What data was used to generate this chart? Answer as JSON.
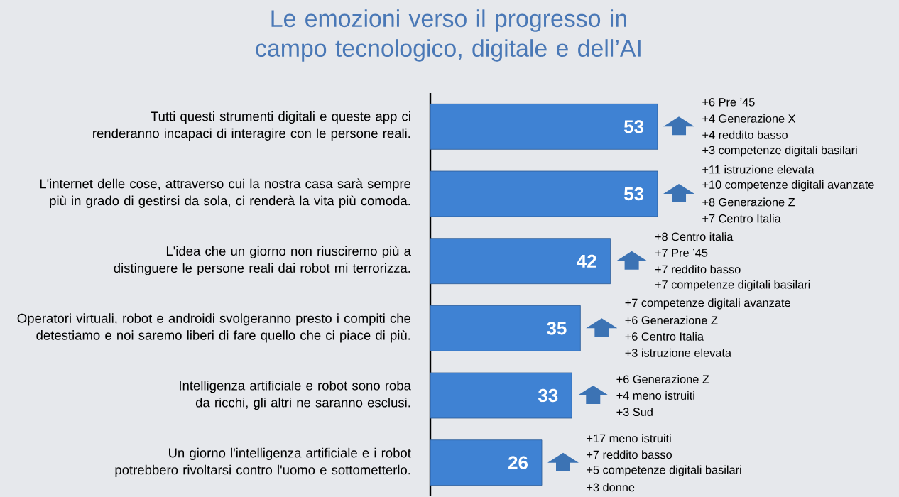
{
  "chart_data": {
    "type": "bar",
    "orientation": "horizontal",
    "data_labels": true,
    "color": "#3f82d3",
    "title": "Le emozioni verso il progresso in campo tecnologico, digitale e dell’AI",
    "categories": [
      "Tutti questi strumenti digitali e queste app ci renderanno incapaci di interagire con le persone reali.",
      "L'internet delle cose, attraverso cui la nostra casa sarà sempre più in grado di gestirsi da sola, ci renderà la vita più comoda.",
      "L'idea che un giorno non riusciremo più a distinguere le persone reali dai robot mi terrorizza.",
      "Operatori virtuali, robot e androidi svolgeranno presto i compiti che detestiamo e noi saremo liberi di fare quello che ci piace di più.",
      "Intelligenza artificiale e robot sono roba da ricchi, gli altri ne saranno esclusi.",
      "Un giorno l'intelligenza artificiale e i robot potrebbero rivoltarsi contro l'uomo e sottometterlo."
    ],
    "values": [
      53,
      53,
      42,
      35,
      33,
      26
    ],
    "annotations": [
      "+6 Pre ’45",
      "+4 Generazione X",
      "+4 reddito basso",
      "+3 competenze digitali basilari",
      "+11 istruzione elevata",
      "+10 competenze digitali avanzate",
      "+8 Generazione Z",
      "+7 Centro Italia",
      "+8 Centro italia",
      "+7 Pre ’45",
      "+7 reddito basso",
      "+7 competenze digitali basilari",
      "+7 competenze digitali avanzate",
      "+6 Generazione Z",
      "+6 Centro Italia",
      "+3 istruzione elevata",
      "+6 Generazione Z",
      "+4 meno istruiti",
      "+3 Sud",
      "+17 meno istruiti",
      "+7 reddito basso",
      "+5 competenze digitali basilari",
      "+3 donne"
    ]
  }
}
